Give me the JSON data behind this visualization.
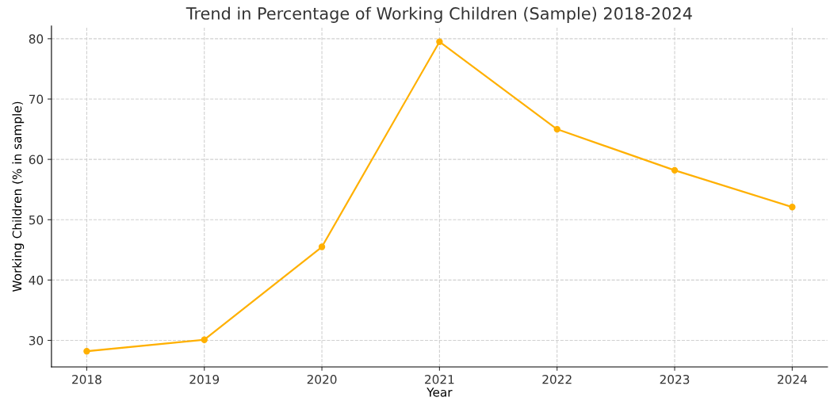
{
  "chart_data": {
    "type": "line",
    "title": "Trend in Percentage of Working Children (Sample) 2018-2024",
    "xlabel": "Year",
    "ylabel": "Working Children (% in sample)",
    "x": [
      2018,
      2019,
      2020,
      2021,
      2022,
      2023,
      2024
    ],
    "series": [
      {
        "color": "#ffb000",
        "values": [
          28.2,
          30.1,
          45.5,
          79.5,
          65.0,
          58.2,
          52.1
        ]
      }
    ],
    "xlim": [
      2017.7,
      2024.3
    ],
    "xticks": [
      2018,
      2019,
      2020,
      2021,
      2022,
      2023,
      2024
    ],
    "ylim": [
      25.6,
      82.1
    ],
    "yticks": [
      30,
      40,
      50,
      60,
      70,
      80
    ],
    "grid": true,
    "marker": "circle",
    "line_style": "solid"
  }
}
